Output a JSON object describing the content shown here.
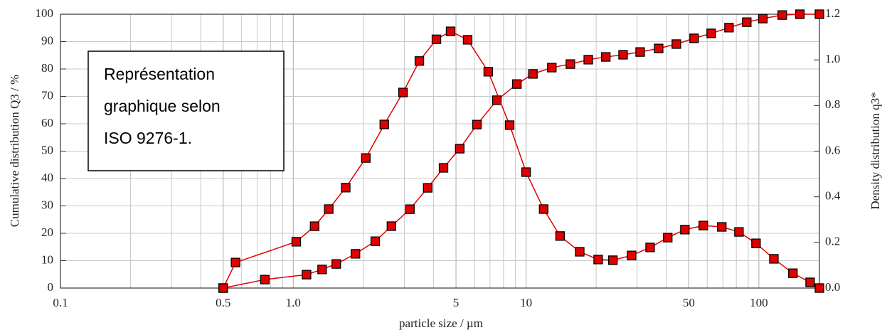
{
  "chart_data": {
    "type": "line",
    "annotation": [
      "Représentation",
      "graphique selon",
      "ISO 9276-1."
    ],
    "x_label": "particle size / µm",
    "y_label": "Cumulative distribution Q3 / %",
    "y2_label": "Density distribution q3*",
    "log_x": true,
    "grid": true,
    "xlim": [
      0.1,
      182
    ],
    "xticks": [
      0.1,
      0.5,
      {
        "value": 1,
        "label": "1.0"
      },
      5,
      10,
      50,
      100
    ],
    "xminorticks": [
      0.2,
      0.3,
      0.4,
      0.6,
      0.7,
      0.8,
      0.9,
      2,
      3,
      4,
      6,
      7,
      8,
      9,
      20,
      30,
      40,
      60,
      70,
      80,
      90
    ],
    "ylim": [
      0,
      100
    ],
    "yticks": [
      0,
      10,
      20,
      30,
      40,
      50,
      60,
      70,
      80,
      90,
      100
    ],
    "y2lim": [
      0,
      1.2
    ],
    "y2ticks": [
      {
        "value": 0,
        "label": "0.0"
      },
      0.2,
      0.4,
      0.6,
      0.8,
      {
        "value": 1,
        "label": "1.0"
      },
      1.2
    ],
    "series": [
      {
        "color": "#e00000",
        "x": [
          0.5,
          0.755,
          1.14,
          1.33,
          1.53,
          1.85,
          2.25,
          2.64,
          3.17,
          3.78,
          4.42,
          5.19,
          6.15,
          7.49,
          9.13,
          10.7,
          12.9,
          15.5,
          18.5,
          22.0,
          26.1,
          30.9,
          37.1,
          44.2,
          52.7,
          62.4,
          74.4,
          88.7,
          104,
          126,
          150,
          182
        ],
        "values": [
          0,
          3.1,
          4.9,
          6.8,
          8.8,
          12.5,
          17.1,
          22.6,
          28.8,
          36.6,
          43.9,
          50.9,
          59.7,
          68.6,
          74.5,
          78.2,
          80.5,
          81.8,
          83.4,
          84.4,
          85.2,
          86.2,
          87.5,
          89.1,
          91.2,
          93.0,
          95.1,
          97.1,
          98.4,
          99.7,
          100,
          100
        ]
      },
      {
        "color": "#e00000",
        "axis": "y2",
        "x": [
          0.5,
          0.565,
          1.03,
          1.235,
          1.42,
          1.68,
          2.05,
          2.46,
          2.96,
          3.48,
          4.12,
          4.74,
          5.61,
          6.88,
          8.5,
          10,
          11.9,
          14,
          17,
          20.4,
          23.6,
          28.4,
          34.1,
          40.6,
          48.1,
          57.7,
          69.3,
          82.1,
          97.2,
          116,
          140,
          166,
          182
        ],
        "values": [
          0,
          0.112,
          0.203,
          0.271,
          0.346,
          0.44,
          0.57,
          0.717,
          0.857,
          0.995,
          1.09,
          1.125,
          1.088,
          0.948,
          0.714,
          0.508,
          0.346,
          0.228,
          0.159,
          0.125,
          0.122,
          0.143,
          0.178,
          0.221,
          0.256,
          0.274,
          0.268,
          0.246,
          0.196,
          0.128,
          0.065,
          0.025,
          0
        ]
      }
    ]
  }
}
